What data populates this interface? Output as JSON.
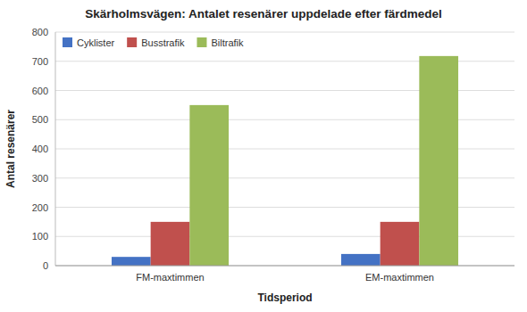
{
  "chart_data": {
    "type": "bar",
    "title": "Skärholmsvägen: Antalet resenärer uppdelade efter färdmedel",
    "xlabel": "Tidsperiod",
    "ylabel": "Antal resenärer",
    "categories": [
      "FM-maxtimmen",
      "EM-maxtimmen"
    ],
    "series": [
      {
        "name": "Cyklister",
        "color": "#4472C4",
        "values": [
          30,
          40
        ]
      },
      {
        "name": "Busstrafik",
        "color": "#C0504D",
        "values": [
          150,
          150
        ]
      },
      {
        "name": "Biltrafik",
        "color": "#9BBB59",
        "values": [
          550,
          718
        ]
      }
    ],
    "ylim": [
      0,
      800
    ],
    "yticks": [
      0,
      100,
      200,
      300,
      400,
      500,
      600,
      700,
      800
    ],
    "grid": true,
    "legend": "upper left"
  }
}
